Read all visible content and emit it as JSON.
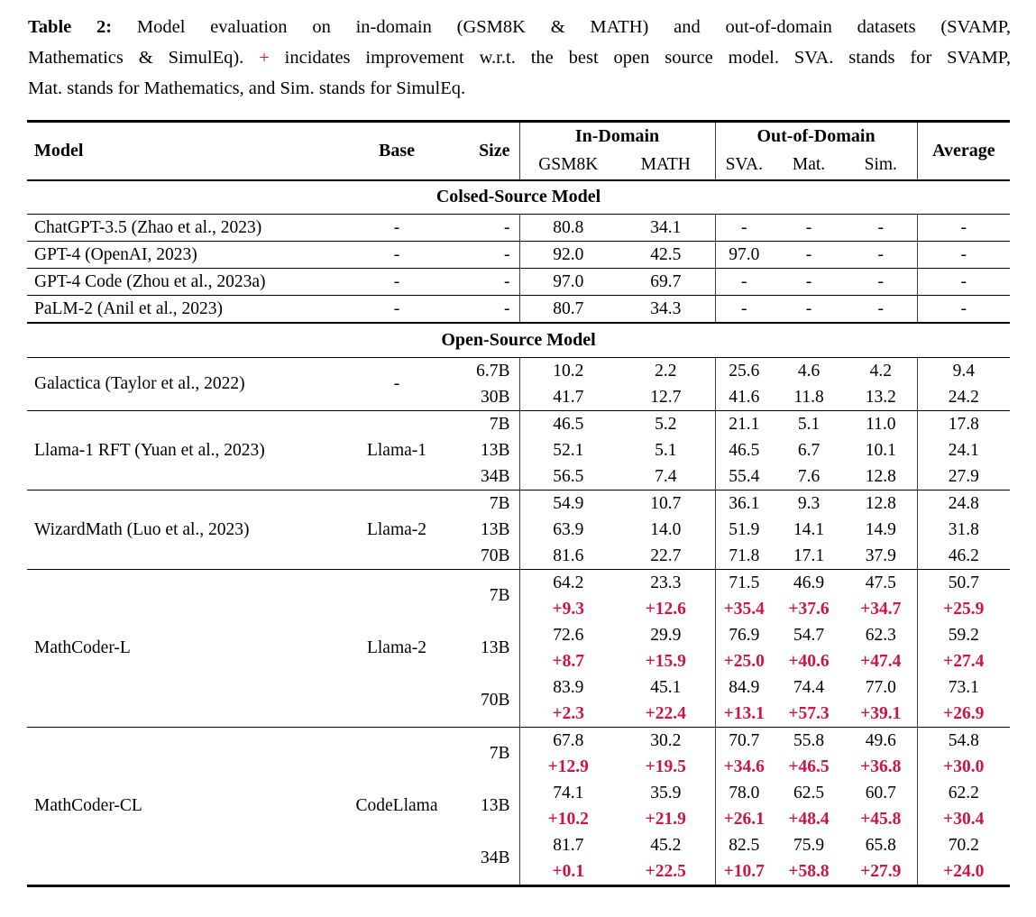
{
  "caption": {
    "label": "Table 2:",
    "line1": "Model evaluation on in-domain (GSM8K & MATH) and out-of-domain datasets (SVAMP,",
    "line2_before_plus": "Mathematics & SimulEq).",
    "plus_sign": "+",
    "line2_after_plus": "incidates improvement w.r.t. the best open source model. SVA. stands for SVAMP,",
    "line3": "Mat. stands for Mathematics, and Sim. stands for SimulEq."
  },
  "colors": {
    "improvement_red": "#cd1446",
    "rule_black": "#000000"
  },
  "header": {
    "model": "Model",
    "base": "Base",
    "size": "Size",
    "in_domain": "In-Domain",
    "out_of_domain": "Out-of-Domain",
    "gsm8k": "GSM8K",
    "math": "MATH",
    "sva": "SVA.",
    "mat": "Mat.",
    "sim": "Sim.",
    "average": "Average"
  },
  "table": {
    "sections": [
      {
        "title": "Colsed-Source Model",
        "groups": [
          {
            "model": "ChatGPT-3.5 (Zhao et al., 2023)",
            "base": "-",
            "rows": [
              {
                "size": "-",
                "values": [
                  "80.8",
                  "34.1",
                  "-",
                  "-",
                  "-",
                  "-"
                ]
              }
            ]
          },
          {
            "model": "GPT-4 (OpenAI, 2023)",
            "base": "-",
            "rows": [
              {
                "size": "-",
                "values": [
                  "92.0",
                  "42.5",
                  "97.0",
                  "-",
                  "-",
                  "-"
                ]
              }
            ]
          },
          {
            "model": "GPT-4 Code (Zhou et al., 2023a)",
            "base": "-",
            "rows": [
              {
                "size": "-",
                "values": [
                  "97.0",
                  "69.7",
                  "-",
                  "-",
                  "-",
                  "-"
                ]
              }
            ]
          },
          {
            "model": "PaLM-2 (Anil et al., 2023)",
            "base": "-",
            "rows": [
              {
                "size": "-",
                "values": [
                  "80.7",
                  "34.3",
                  "-",
                  "-",
                  "-",
                  "-"
                ]
              }
            ]
          }
        ]
      },
      {
        "title": "Open-Source Model",
        "groups": [
          {
            "model": "Galactica (Taylor et al., 2022)",
            "base": "-",
            "rows": [
              {
                "size": "6.7B",
                "values": [
                  "10.2",
                  "2.2",
                  "25.6",
                  "4.6",
                  "4.2",
                  "9.4"
                ]
              },
              {
                "size": "30B",
                "values": [
                  "41.7",
                  "12.7",
                  "41.6",
                  "11.8",
                  "13.2",
                  "24.2"
                ]
              }
            ]
          },
          {
            "model": "Llama-1 RFT (Yuan et al., 2023)",
            "base": "Llama-1",
            "rows": [
              {
                "size": "7B",
                "values": [
                  "46.5",
                  "5.2",
                  "21.1",
                  "5.1",
                  "11.0",
                  "17.8"
                ]
              },
              {
                "size": "13B",
                "values": [
                  "52.1",
                  "5.1",
                  "46.5",
                  "6.7",
                  "10.1",
                  "24.1"
                ]
              },
              {
                "size": "34B",
                "values": [
                  "56.5",
                  "7.4",
                  "55.4",
                  "7.6",
                  "12.8",
                  "27.9"
                ]
              }
            ]
          },
          {
            "model": "WizardMath (Luo et al., 2023)",
            "base": "Llama-2",
            "rows": [
              {
                "size": "7B",
                "values": [
                  "54.9",
                  "10.7",
                  "36.1",
                  "9.3",
                  "12.8",
                  "24.8"
                ]
              },
              {
                "size": "13B",
                "values": [
                  "63.9",
                  "14.0",
                  "51.9",
                  "14.1",
                  "14.9",
                  "31.8"
                ]
              },
              {
                "size": "70B",
                "values": [
                  "81.6",
                  "22.7",
                  "71.8",
                  "17.1",
                  "37.9",
                  "46.2"
                ]
              }
            ]
          },
          {
            "model": "MathCoder-L",
            "base": "Llama-2",
            "rows": [
              {
                "size": "7B",
                "values": [
                  "64.2",
                  "23.3",
                  "71.5",
                  "46.9",
                  "47.5",
                  "50.7"
                ],
                "delta": [
                  "+9.3",
                  "+12.6",
                  "+35.4",
                  "+37.6",
                  "+34.7",
                  "+25.9"
                ]
              },
              {
                "size": "13B",
                "values": [
                  "72.6",
                  "29.9",
                  "76.9",
                  "54.7",
                  "62.3",
                  "59.2"
                ],
                "delta": [
                  "+8.7",
                  "+15.9",
                  "+25.0",
                  "+40.6",
                  "+47.4",
                  "+27.4"
                ]
              },
              {
                "size": "70B",
                "values": [
                  "83.9",
                  "45.1",
                  "84.9",
                  "74.4",
                  "77.0",
                  "73.1"
                ],
                "delta": [
                  "+2.3",
                  "+22.4",
                  "+13.1",
                  "+57.3",
                  "+39.1",
                  "+26.9"
                ]
              }
            ]
          },
          {
            "model": "MathCoder-CL",
            "base": "CodeLlama",
            "rows": [
              {
                "size": "7B",
                "values": [
                  "67.8",
                  "30.2",
                  "70.7",
                  "55.8",
                  "49.6",
                  "54.8"
                ],
                "delta": [
                  "+12.9",
                  "+19.5",
                  "+34.6",
                  "+46.5",
                  "+36.8",
                  "+30.0"
                ]
              },
              {
                "size": "13B",
                "values": [
                  "74.1",
                  "35.9",
                  "78.0",
                  "62.5",
                  "60.7",
                  "62.2"
                ],
                "delta": [
                  "+10.2",
                  "+21.9",
                  "+26.1",
                  "+48.4",
                  "+45.8",
                  "+30.4"
                ]
              },
              {
                "size": "34B",
                "values": [
                  "81.7",
                  "45.2",
                  "82.5",
                  "75.9",
                  "65.8",
                  "70.2"
                ],
                "delta": [
                  "+0.1",
                  "+22.5",
                  "+10.7",
                  "+58.8",
                  "+27.9",
                  "+24.0"
                ]
              }
            ]
          }
        ]
      }
    ]
  }
}
